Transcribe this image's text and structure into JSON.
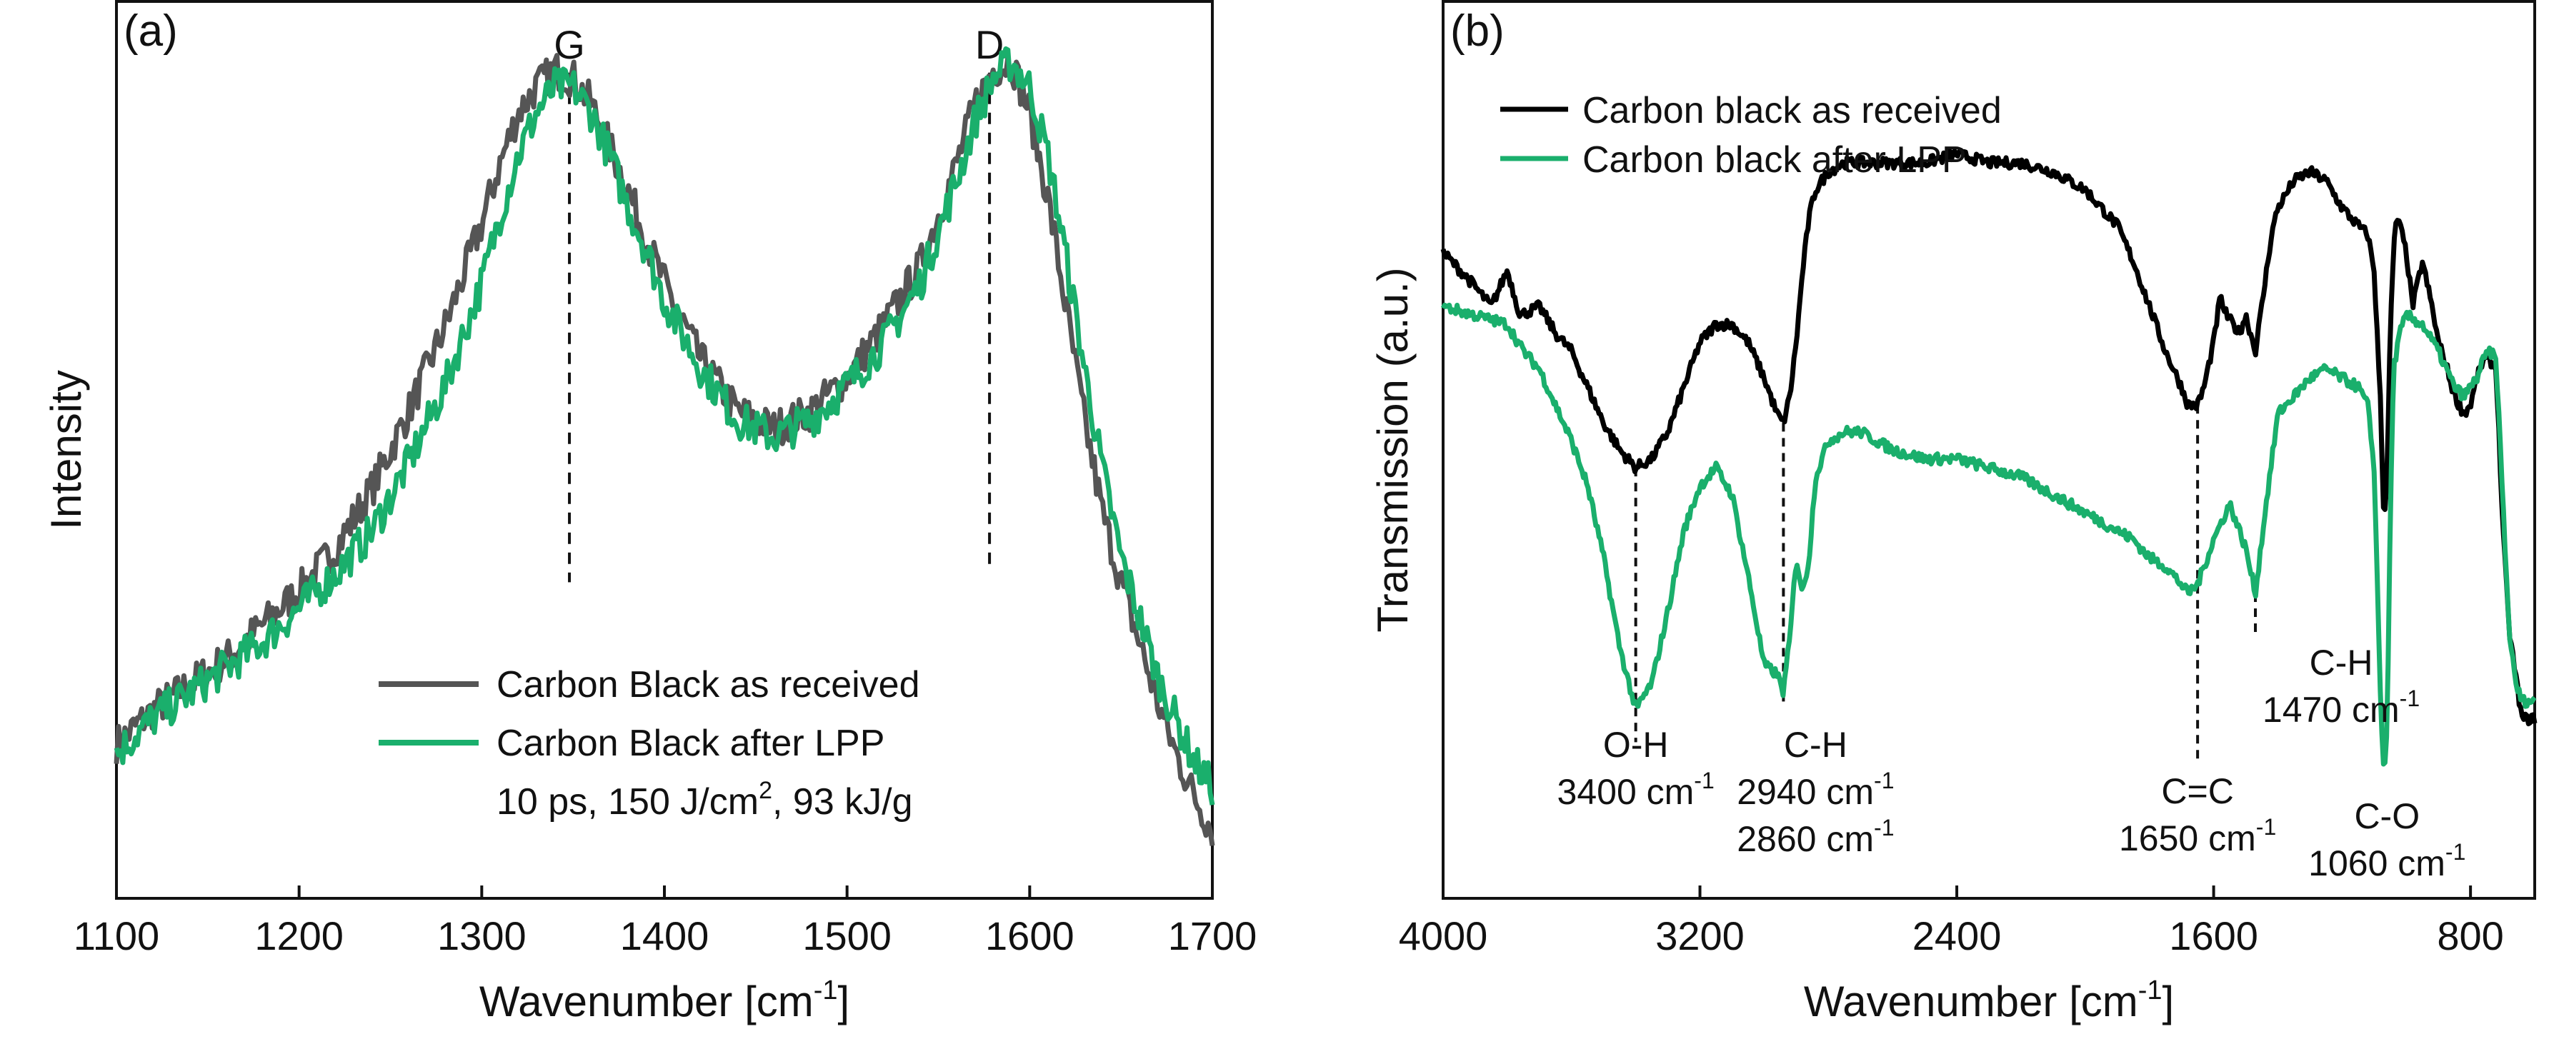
{
  "chart_data": [
    {
      "type": "line",
      "panel_label": "(a)",
      "xlabel": "Wavenumber [cm",
      "xlabel_sup": "-1",
      "xlabel_end": "]",
      "ylabel": "Intensity",
      "xlim": [
        1100,
        1700
      ],
      "ylim": [
        0,
        1.05
      ],
      "xticks": [
        1100,
        1200,
        1300,
        1400,
        1500,
        1600,
        1700
      ],
      "peak_markers": [
        {
          "label": "G",
          "x": 1348,
          "y_top": 1.0,
          "y_bottom": 0.37
        },
        {
          "label": "D",
          "x": 1578,
          "y_top": 1.0,
          "y_bottom": 0.39
        }
      ],
      "legend": {
        "position": "lower-center",
        "note_parts": [
          "10 ps, 150 J/cm",
          "2",
          ", 93 kJ/g"
        ]
      },
      "series": [
        {
          "name": "Carbon Black as received",
          "color": "#555555",
          "x": [
            1100,
            1120,
            1140,
            1160,
            1180,
            1200,
            1220,
            1240,
            1260,
            1280,
            1300,
            1310,
            1320,
            1330,
            1340,
            1350,
            1360,
            1370,
            1380,
            1390,
            1400,
            1420,
            1440,
            1460,
            1480,
            1500,
            1520,
            1540,
            1560,
            1570,
            1580,
            1590,
            1600,
            1610,
            1620,
            1630,
            1640,
            1650,
            1660,
            1670,
            1680,
            1690,
            1700
          ],
          "values": [
            0.18,
            0.22,
            0.25,
            0.28,
            0.32,
            0.36,
            0.41,
            0.48,
            0.57,
            0.67,
            0.79,
            0.86,
            0.92,
            0.95,
            0.97,
            0.96,
            0.93,
            0.88,
            0.83,
            0.77,
            0.72,
            0.63,
            0.57,
            0.55,
            0.57,
            0.61,
            0.67,
            0.74,
            0.86,
            0.93,
            0.97,
            0.98,
            0.92,
            0.82,
            0.69,
            0.56,
            0.45,
            0.37,
            0.3,
            0.23,
            0.17,
            0.12,
            0.08
          ]
        },
        {
          "name": "Carbon Black after LPP",
          "color": "#1aaf6c",
          "x": [
            1100,
            1120,
            1140,
            1160,
            1180,
            1200,
            1220,
            1240,
            1260,
            1280,
            1300,
            1310,
            1320,
            1330,
            1340,
            1350,
            1360,
            1370,
            1380,
            1390,
            1400,
            1420,
            1440,
            1460,
            1480,
            1500,
            1520,
            1540,
            1560,
            1570,
            1580,
            1590,
            1600,
            1610,
            1620,
            1630,
            1640,
            1650,
            1660,
            1670,
            1680,
            1690,
            1700
          ],
          "values": [
            0.17,
            0.21,
            0.24,
            0.27,
            0.3,
            0.34,
            0.38,
            0.43,
            0.51,
            0.6,
            0.72,
            0.8,
            0.87,
            0.92,
            0.95,
            0.95,
            0.92,
            0.87,
            0.81,
            0.76,
            0.7,
            0.62,
            0.56,
            0.54,
            0.56,
            0.6,
            0.65,
            0.72,
            0.84,
            0.91,
            0.96,
            0.98,
            0.95,
            0.87,
            0.75,
            0.62,
            0.5,
            0.4,
            0.33,
            0.26,
            0.21,
            0.16,
            0.13
          ]
        }
      ]
    },
    {
      "type": "line",
      "panel_label": "(b)",
      "xlabel": "Wavenumber [cm",
      "xlabel_sup": "-1",
      "xlabel_end": "]",
      "ylabel": "Transmission (a.u.)",
      "xlim": [
        4000,
        600
      ],
      "ylim": [
        0,
        1.0
      ],
      "xticks": [
        4000,
        3200,
        2400,
        1600,
        800
      ],
      "legend": {
        "position": "top-left"
      },
      "series": [
        {
          "name": "Carbon black as received",
          "color": "#000000",
          "x": [
            4000,
            3920,
            3850,
            3800,
            3760,
            3700,
            3650,
            3600,
            3550,
            3500,
            3450,
            3400,
            3350,
            3300,
            3250,
            3200,
            3150,
            3100,
            3050,
            3000,
            2960,
            2940,
            2920,
            2900,
            2880,
            2860,
            2840,
            2800,
            2750,
            2700,
            2650,
            2600,
            2500,
            2400,
            2300,
            2200,
            2100,
            2000,
            1900,
            1850,
            1800,
            1750,
            1700,
            1680,
            1650,
            1630,
            1600,
            1580,
            1560,
            1520,
            1500,
            1470,
            1450,
            1420,
            1400,
            1350,
            1300,
            1250,
            1200,
            1150,
            1120,
            1100,
            1080,
            1070,
            1060,
            1050,
            1040,
            1030,
            1020,
            1000,
            980,
            950,
            920,
            900,
            880,
            850,
            820,
            800,
            780,
            760,
            740,
            720,
            700,
            680,
            660,
            640
          ],
          "values": [
            0.72,
            0.69,
            0.66,
            0.7,
            0.65,
            0.66,
            0.63,
            0.61,
            0.57,
            0.53,
            0.5,
            0.48,
            0.49,
            0.52,
            0.57,
            0.62,
            0.64,
            0.64,
            0.62,
            0.58,
            0.54,
            0.53,
            0.56,
            0.62,
            0.7,
            0.76,
            0.79,
            0.81,
            0.82,
            0.82,
            0.82,
            0.82,
            0.82,
            0.83,
            0.82,
            0.82,
            0.81,
            0.79,
            0.75,
            0.71,
            0.66,
            0.61,
            0.57,
            0.55,
            0.55,
            0.57,
            0.62,
            0.67,
            0.65,
            0.63,
            0.65,
            0.61,
            0.66,
            0.74,
            0.77,
            0.8,
            0.81,
            0.8,
            0.77,
            0.75,
            0.74,
            0.7,
            0.55,
            0.42,
            0.47,
            0.63,
            0.72,
            0.76,
            0.75,
            0.72,
            0.66,
            0.71,
            0.66,
            0.62,
            0.6,
            0.56,
            0.54,
            0.55,
            0.58,
            0.6,
            0.6,
            0.59,
            0.42,
            0.3,
            0.25,
            0.2
          ]
        },
        {
          "name": "Carbon black after LPP",
          "color": "#1aaf6c",
          "x": [
            4000,
            3900,
            3800,
            3750,
            3700,
            3650,
            3600,
            3550,
            3500,
            3450,
            3400,
            3350,
            3300,
            3250,
            3200,
            3150,
            3100,
            3050,
            3000,
            2960,
            2940,
            2920,
            2900,
            2880,
            2860,
            2840,
            2800,
            2750,
            2700,
            2650,
            2600,
            2500,
            2400,
            2300,
            2200,
            2100,
            2000,
            1900,
            1850,
            1800,
            1750,
            1700,
            1680,
            1650,
            1600,
            1550,
            1500,
            1470,
            1440,
            1400,
            1350,
            1300,
            1250,
            1200,
            1150,
            1120,
            1100,
            1080,
            1070,
            1060,
            1050,
            1040,
            1020,
            1000,
            950,
            900,
            850,
            820,
            800,
            780,
            760,
            740,
            720,
            700,
            680,
            660,
            640
          ],
          "values": [
            0.66,
            0.65,
            0.64,
            0.61,
            0.59,
            0.55,
            0.51,
            0.46,
            0.38,
            0.28,
            0.21,
            0.24,
            0.32,
            0.41,
            0.46,
            0.48,
            0.45,
            0.36,
            0.26,
            0.25,
            0.23,
            0.29,
            0.38,
            0.34,
            0.38,
            0.47,
            0.51,
            0.52,
            0.52,
            0.51,
            0.5,
            0.49,
            0.49,
            0.48,
            0.47,
            0.45,
            0.43,
            0.41,
            0.4,
            0.38,
            0.37,
            0.35,
            0.34,
            0.35,
            0.4,
            0.44,
            0.39,
            0.34,
            0.43,
            0.54,
            0.56,
            0.58,
            0.59,
            0.58,
            0.57,
            0.55,
            0.48,
            0.22,
            0.14,
            0.18,
            0.42,
            0.59,
            0.63,
            0.65,
            0.64,
            0.61,
            0.57,
            0.56,
            0.57,
            0.58,
            0.6,
            0.61,
            0.6,
            0.45,
            0.3,
            0.24,
            0.22
          ]
        }
      ],
      "annotations": [
        {
          "lines": [
            "O-H",
            "3400 cm"
          ],
          "sup": "-1",
          "x": 3400,
          "line_top": 0.48,
          "line_bottom": 0.19
        },
        {
          "lines": [
            "C-H",
            "2940 cm",
            "2860 cm"
          ],
          "sup": "-1",
          "x": 2940,
          "line_top": 0.53,
          "line_bottom": 0.23
        },
        {
          "lines": [
            "C=C",
            "1650 cm"
          ],
          "sup": "-1",
          "x": 1650,
          "line_top": 0.55,
          "line_bottom": 0.17
        },
        {
          "lines": [
            "C-H",
            "1470 cm"
          ],
          "sup": "-1",
          "x": 1470,
          "line_top": 0.34,
          "line_bottom": 0.31
        },
        {
          "lines": [
            "C-O",
            "1060 cm"
          ],
          "sup": "-1",
          "x": 1060,
          "line_top": 0.14,
          "line_bottom": 0.14
        }
      ]
    }
  ]
}
